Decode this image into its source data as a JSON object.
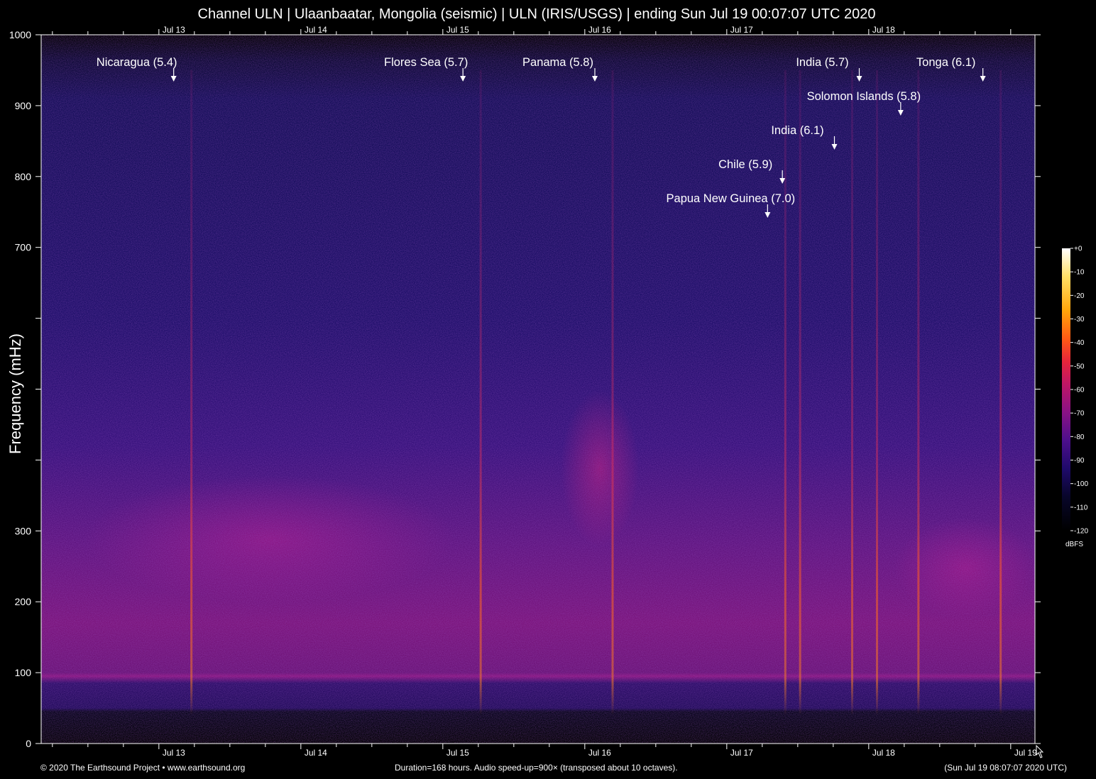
{
  "title": "Channel ULN | Ulaanbaatar, Mongolia (seismic) | ULN (IRIS/USGS) | ending Sun Jul 19 00:07:07 UTC 2020",
  "footer": {
    "left": "© 2020 The Earthsound Project • www.earthsound.org",
    "center": "Duration=168 hours. Audio speed-up=900× (transposed about 10 octaves).",
    "right": "(Sun Jul 19 08:07:07 2020 UTC)"
  },
  "chart_data": {
    "type": "heatmap",
    "title": "Channel ULN | Ulaanbaatar, Mongolia (seismic) | ULN (IRIS/USGS) | ending Sun Jul 19 00:07:07 UTC 2020",
    "ylabel": "Frequency (mHz)",
    "xlabel": "",
    "ylim": [
      0,
      1000
    ],
    "xlim_hours": [
      0,
      168
    ],
    "y_ticks": [
      0,
      100,
      200,
      300,
      400,
      500,
      600,
      700,
      800,
      900,
      1000
    ],
    "y_tick_labels": [
      "0",
      "100",
      "200",
      "300",
      "",
      "",
      "",
      "700",
      "800",
      "900",
      "1000"
    ],
    "x_day_labels": [
      {
        "label": "Jul 13",
        "hours": 19.9
      },
      {
        "label": "Jul 14",
        "hours": 43.9
      },
      {
        "label": "Jul 15",
        "hours": 67.9
      },
      {
        "label": "Jul 16",
        "hours": 91.9
      },
      {
        "label": "Jul 17",
        "hours": 115.9
      },
      {
        "label": "Jul 18",
        "hours": 139.9
      },
      {
        "label": "Jul 19",
        "hours": 163.9
      }
    ],
    "events": [
      {
        "label": "Nicaragua (5.4)",
        "hours": 22.4,
        "tier": 0
      },
      {
        "label": "Flores Sea (5.7)",
        "hours": 71.3,
        "tier": 0
      },
      {
        "label": "Panama (5.8)",
        "hours": 93.6,
        "tier": 0
      },
      {
        "label": "India (5.7)",
        "hours": 138.3,
        "tier": 0
      },
      {
        "label": "Tonga (6.1)",
        "hours": 159.2,
        "tier": 0
      },
      {
        "label": "Solomon Islands (5.8)",
        "hours": 145.3,
        "tier": 1
      },
      {
        "label": "India (6.1)",
        "hours": 134.1,
        "tier": 2
      },
      {
        "label": "Chile (5.9)",
        "hours": 125.3,
        "tier": 3
      },
      {
        "label": "Papua New Guinea (7.0)",
        "hours": 122.8,
        "tier": 4
      }
    ],
    "colorbar": {
      "unit": "dBFS",
      "range": [
        -120,
        0
      ],
      "ticks": [
        "+0",
        "-10",
        "-20",
        "-30",
        "-40",
        "-50",
        "-60",
        "-70",
        "-80",
        "-90",
        "-100",
        "-110",
        "-120"
      ],
      "colors": [
        "#000000",
        "#08062a",
        "#1f0a6b",
        "#4d0f8c",
        "#8a1285",
        "#c01665",
        "#e8253a",
        "#ff5a14",
        "#ffa50a",
        "#ffe066",
        "#ffffff"
      ]
    },
    "grid": false
  }
}
